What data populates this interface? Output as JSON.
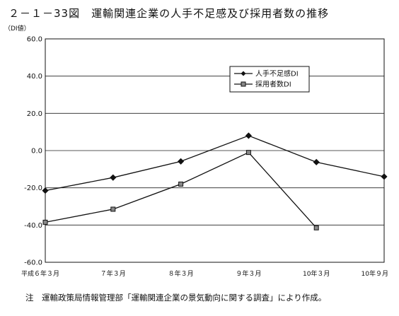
{
  "header": {
    "title": "２－１－33図　運輸関連企業の人手不足感及び採用者数の推移",
    "unit": "（DI値）"
  },
  "footer": {
    "note": "注　運輸政策局情報管理部「運輸関連企業の景気動向に関する調査」により作成。"
  },
  "chart_data": {
    "type": "line",
    "title": "２－１－33図　運輸関連企業の人手不足感及び採用者数の推移",
    "xlabel": "",
    "ylabel": "（DI値）",
    "ylim": [
      -60,
      60
    ],
    "yticks": [
      "60.0",
      "40.0",
      "20.0",
      "0.0",
      "-20.0",
      "-40.0",
      "-60.0"
    ],
    "ytick_values": [
      60,
      40,
      20,
      0,
      -20,
      -40,
      -60
    ],
    "categories": [
      "平成６年３月",
      "７年３月",
      "８年３月",
      "９年３月",
      "10年３月",
      "10年９月"
    ],
    "grid": true,
    "legend_position": "top-right",
    "series": [
      {
        "name": "人手不足感DI",
        "marker": "diamond",
        "values": [
          -21.5,
          -14.5,
          -5.8,
          8.0,
          -6.2,
          -14.0
        ]
      },
      {
        "name": "採用者数DI",
        "marker": "square",
        "values": [
          -38.5,
          -31.5,
          -18.0,
          -1.0,
          -41.5,
          null
        ]
      }
    ],
    "colors": {
      "line": "#111111",
      "grid": "#222222",
      "frame": "#111111"
    }
  }
}
